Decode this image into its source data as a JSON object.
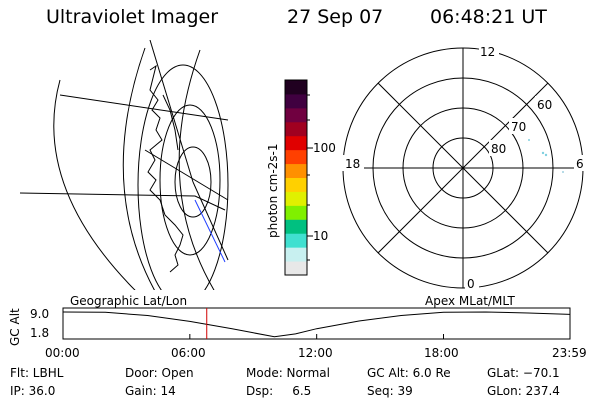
{
  "header": {
    "instrument": "Ultraviolet Imager",
    "date": "27 Sep 07",
    "time": "06:48:21 UT"
  },
  "colorbar": {
    "unit_label": "photon cm-2s-1",
    "ticks": [
      "100",
      "10"
    ],
    "colors": [
      "#e8e8e8",
      "#c8f0f0",
      "#40e0d0",
      "#00c080",
      "#80f000",
      "#e0f000",
      "#ffd000",
      "#ff9000",
      "#ff4000",
      "#e00000",
      "#a00020",
      "#700040",
      "#400040",
      "#200020"
    ]
  },
  "polar_plot": {
    "mlt_labels": [
      "12",
      "18",
      "6",
      "0"
    ],
    "lat_labels": [
      "60",
      "70",
      "80"
    ]
  },
  "timeline": {
    "left_title": "Geographic Lat/Lon",
    "right_title": "Apex MLat/MLT",
    "ylabel": "GC Alt",
    "ymax_label": "9.0",
    "ymin_label": "1.8",
    "time_ticks": [
      "00:00",
      "06:00",
      "12:00",
      "18:00",
      "23:59"
    ]
  },
  "status": {
    "flt": "Flt: LBHL",
    "ip": "IP: 36.0",
    "door": "Door: Open",
    "gain": "Gain: 14",
    "mode": "Mode: Normal",
    "dsp": "Dsp:     6.5",
    "gc_alt": "GC Alt: 6.0 Re",
    "seq": "Seq: 39",
    "glat": "GLat: −70.1",
    "glon": "GLon: 237.4"
  },
  "chart_data": {
    "type": "line",
    "series": [
      {
        "x": [
          "00:00",
          "02:00",
          "04:00",
          "06:00",
          "08:00",
          "09:00",
          "10:00",
          "11:00",
          "12:00",
          "14:00",
          "16:00",
          "18:00",
          "20:00",
          "22:00",
          "23:59"
        ],
        "values": [
          9.0,
          8.9,
          8.0,
          6.3,
          4.2,
          3.0,
          1.9,
          2.7,
          4.2,
          6.4,
          8.0,
          8.9,
          9.0,
          8.7,
          8.3
        ]
      }
    ],
    "current_time": "06:48",
    "xlim": [
      "00:00",
      "23:59"
    ],
    "ylim": [
      1.8,
      9.0
    ],
    "ylabel": "GC Alt"
  }
}
